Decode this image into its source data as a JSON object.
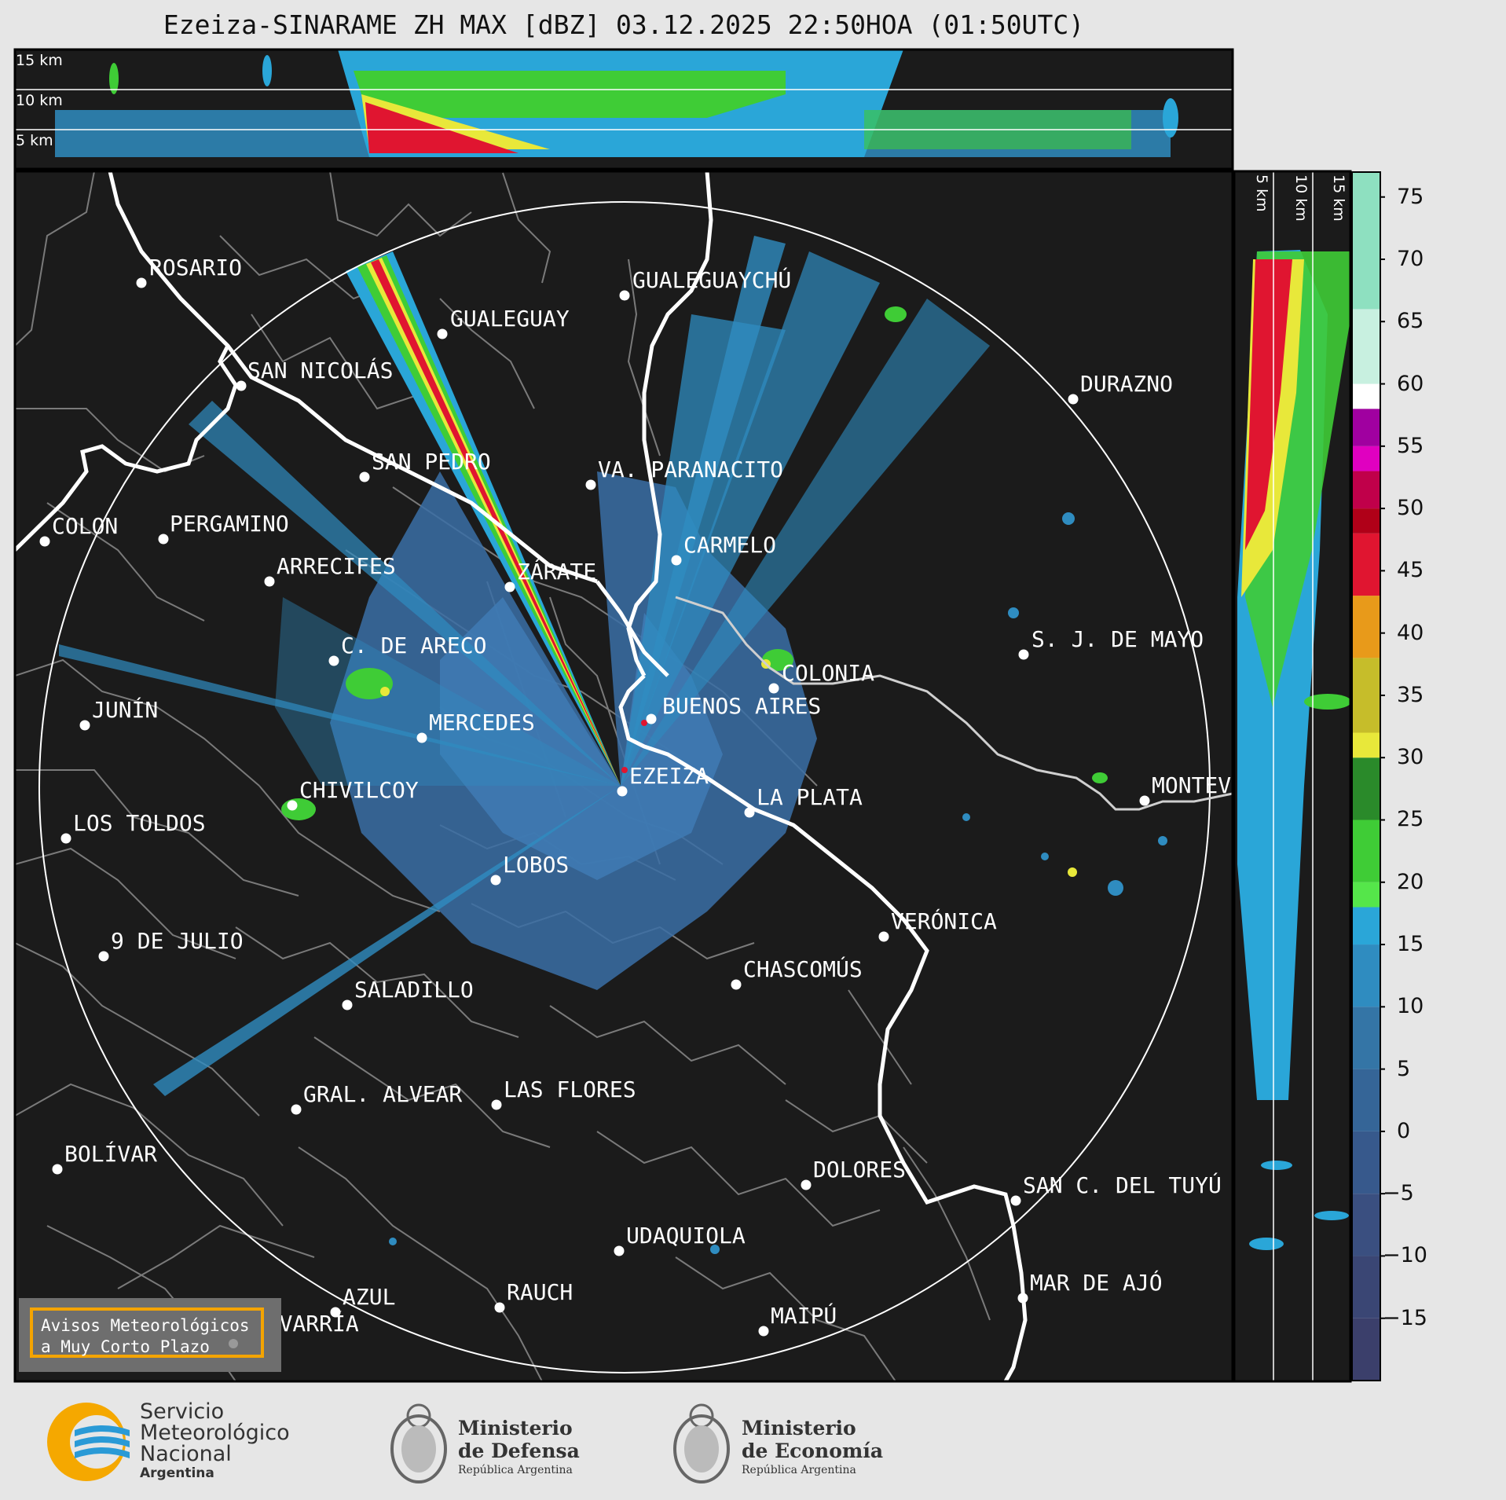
{
  "title": "Ezeiza-SINARAME ZH MAX [dBZ] 03.12.2025 22:50HOA (01:50UTC)",
  "top_section_km_labels": [
    "15 km",
    "10 km",
    "5 km"
  ],
  "side_section_km_labels": [
    "5 km",
    "10 km",
    "15 km"
  ],
  "cities": [
    {
      "name": "ROSARIO"
    },
    {
      "name": "GUALEGUAYCHÚ"
    },
    {
      "name": "GUALEGUAY"
    },
    {
      "name": "SAN NICOLÁS"
    },
    {
      "name": "DURAZNO"
    },
    {
      "name": "SAN PEDRO"
    },
    {
      "name": "VA. PARANACITO"
    },
    {
      "name": "COLON"
    },
    {
      "name": "PERGAMINO"
    },
    {
      "name": "CARMELO"
    },
    {
      "name": "ARRECIFES"
    },
    {
      "name": "ZÁRATE"
    },
    {
      "name": "S. J. DE MAYO"
    },
    {
      "name": "C. DE ARECO"
    },
    {
      "name": "COLONIA"
    },
    {
      "name": "JUNÍN"
    },
    {
      "name": "BUENOS AIRES"
    },
    {
      "name": "MERCEDES"
    },
    {
      "name": "EZEIZA"
    },
    {
      "name": "MONTEV"
    },
    {
      "name": "CHIVILCOY"
    },
    {
      "name": "LA PLATA"
    },
    {
      "name": "LOS TOLDOS"
    },
    {
      "name": "LOBOS"
    },
    {
      "name": "VERÓNICA"
    },
    {
      "name": "9 DE JULIO"
    },
    {
      "name": "CHASCOMÚS"
    },
    {
      "name": "SALADILLO"
    },
    {
      "name": "GRAL. ALVEAR"
    },
    {
      "name": "LAS FLORES"
    },
    {
      "name": "BOLÍVAR"
    },
    {
      "name": "DOLORES"
    },
    {
      "name": "SAN C. DEL TUYÚ"
    },
    {
      "name": "UDAQUIOLA"
    },
    {
      "name": "MAR DE AJÓ"
    },
    {
      "name": "AZUL"
    },
    {
      "name": "RAUCH"
    },
    {
      "name": "OLAVARRÍA"
    },
    {
      "name": "MAIPÚ"
    }
  ],
  "colorbar": {
    "unit": "dBZ",
    "range": [
      -20,
      77
    ],
    "ticks": [
      "75",
      "70",
      "65",
      "60",
      "55",
      "50",
      "45",
      "40",
      "35",
      "30",
      "25",
      "20",
      "15",
      "10",
      "5",
      "0",
      "−5",
      "−10",
      "−15"
    ],
    "stops": [
      {
        "from": -20,
        "to": -15,
        "color": "#3b3f6b"
      },
      {
        "from": -15,
        "to": -10,
        "color": "#3a4674"
      },
      {
        "from": -10,
        "to": -5,
        "color": "#3a4f80"
      },
      {
        "from": -5,
        "to": 0,
        "color": "#37598c"
      },
      {
        "from": 0,
        "to": 5,
        "color": "#356597"
      },
      {
        "from": 5,
        "to": 10,
        "color": "#3475a6"
      },
      {
        "from": 10,
        "to": 15,
        "color": "#2f8cc0"
      },
      {
        "from": 15,
        "to": 18,
        "color": "#2aa6d8"
      },
      {
        "from": 18,
        "to": 20,
        "color": "#55e64a"
      },
      {
        "from": 20,
        "to": 25,
        "color": "#3fcc36"
      },
      {
        "from": 25,
        "to": 30,
        "color": "#2a8a2a"
      },
      {
        "from": 30,
        "to": 32,
        "color": "#e8e83a"
      },
      {
        "from": 32,
        "to": 38,
        "color": "#c6bd2a"
      },
      {
        "from": 38,
        "to": 43,
        "color": "#e89a1a"
      },
      {
        "from": 43,
        "to": 48,
        "color": "#e01530"
      },
      {
        "from": 48,
        "to": 50,
        "color": "#b00018"
      },
      {
        "from": 50,
        "to": 53,
        "color": "#c0004a"
      },
      {
        "from": 53,
        "to": 55,
        "color": "#e000c0"
      },
      {
        "from": 55,
        "to": 58,
        "color": "#a000a0"
      },
      {
        "from": 58,
        "to": 60,
        "color": "#ffffff"
      },
      {
        "from": 60,
        "to": 66,
        "color": "#c8f0e0"
      },
      {
        "from": 66,
        "to": 77,
        "color": "#8ee0c0"
      }
    ]
  },
  "aviso": {
    "line1": "Avisos Meteorológicos",
    "line2": "a Muy Corto Plazo"
  },
  "logos": {
    "smn": {
      "line1": "Servicio",
      "line2": "Meteorológico",
      "line3": "Nacional",
      "line4": "Argentina"
    },
    "defensa": {
      "line1": "Ministerio",
      "line2": "de Defensa",
      "line3": "República Argentina"
    },
    "economia": {
      "line1": "Ministerio",
      "line2": "de Economía",
      "line3": "República Argentina"
    }
  },
  "colors": {
    "map_bg": "#1b1b1b",
    "coast": "#ffffff",
    "border": "#7a7a7a",
    "page_bg": "#e6e6e6"
  }
}
